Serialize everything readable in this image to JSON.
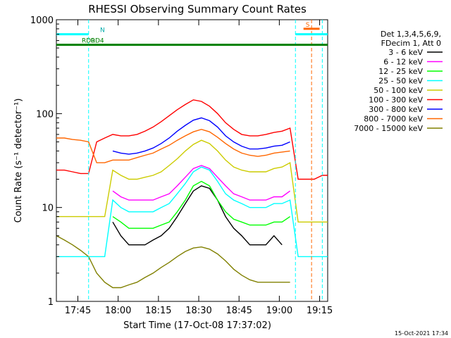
{
  "chart_data": {
    "type": "line",
    "title": "RHESSI Observing Summary Count Rates",
    "xlabel": "Start Time (17-Oct-08 17:37:02)",
    "ylabel": "Count Rate (s⁻¹ detector⁻¹)",
    "y_scale": "log",
    "ylim": [
      1,
      1000
    ],
    "xlim": [
      "17:37",
      "19:18"
    ],
    "x_ticks": [
      "17:45",
      "18:00",
      "18:15",
      "18:30",
      "18:45",
      "19:00",
      "19:15"
    ],
    "y_ticks": [
      "1",
      "10",
      "100",
      "1000"
    ],
    "legend_position": "top-right",
    "legend_header": [
      "Det 1,3,4,5,6,9,",
      "FDecim 1, Att 0"
    ],
    "timestamp": "15-Oct-2021 17:34",
    "x": [
      "17:37",
      "17:40",
      "17:43",
      "17:46",
      "17:49",
      "17:52",
      "17:55",
      "17:58",
      "18:01",
      "18:04",
      "18:07",
      "18:10",
      "18:13",
      "18:16",
      "18:19",
      "18:22",
      "18:25",
      "18:28",
      "18:31",
      "18:34",
      "18:37",
      "18:40",
      "18:43",
      "18:46",
      "18:49",
      "18:52",
      "18:55",
      "18:58",
      "19:01",
      "19:04",
      "19:07",
      "19:10",
      "19:13",
      "19:16",
      "19:18"
    ],
    "series": [
      {
        "name": "3 - 6 keV",
        "color": "#000000",
        "values": [
          null,
          null,
          null,
          null,
          null,
          null,
          null,
          7,
          5,
          4,
          4,
          4,
          4.5,
          5,
          6,
          8,
          11,
          15,
          17,
          16,
          12,
          8,
          6,
          5,
          4,
          4,
          4,
          5,
          4,
          null,
          null,
          null,
          null,
          null,
          null
        ]
      },
      {
        "name": "6 - 12 keV",
        "color": "#ff00ff",
        "values": [
          null,
          null,
          null,
          null,
          null,
          null,
          null,
          15,
          13,
          12,
          12,
          12,
          12,
          13,
          14,
          17,
          21,
          26,
          28,
          26,
          21,
          17,
          14,
          13,
          12,
          12,
          12,
          13,
          13,
          15,
          null,
          null,
          null,
          null,
          null
        ]
      },
      {
        "name": "12 - 25 keV",
        "color": "#00ff00",
        "values": [
          null,
          null,
          null,
          null,
          null,
          null,
          null,
          8,
          7,
          6,
          6,
          6,
          6,
          6.5,
          7,
          9,
          12,
          17,
          19,
          17,
          12,
          9,
          7.5,
          7,
          6.5,
          6.5,
          6.5,
          7,
          7,
          8,
          null,
          null,
          null,
          null,
          null
        ]
      },
      {
        "name": "25 - 50 keV",
        "color": "#00ffff",
        "values": [
          3,
          3,
          3,
          3,
          3,
          3,
          3,
          12,
          10,
          9,
          9,
          9,
          9,
          10,
          11,
          14,
          18,
          24,
          27,
          25,
          19,
          14,
          12,
          11,
          10,
          10,
          10,
          11,
          11,
          12,
          3,
          3,
          3,
          3,
          3
        ]
      },
      {
        "name": "50 - 100 keV",
        "color": "#cccc00",
        "values": [
          8,
          8,
          8,
          8,
          8,
          8,
          8,
          25,
          22,
          20,
          20,
          21,
          22,
          24,
          28,
          33,
          40,
          47,
          52,
          48,
          40,
          32,
          27,
          25,
          24,
          24,
          24,
          26,
          27,
          30,
          7,
          7,
          7,
          7,
          7
        ]
      },
      {
        "name": "100 - 300 keV",
        "color": "#ff0000",
        "values": [
          25,
          25,
          24,
          23,
          23,
          50,
          55,
          60,
          58,
          58,
          60,
          65,
          72,
          82,
          95,
          110,
          125,
          140,
          135,
          120,
          100,
          80,
          68,
          60,
          58,
          58,
          60,
          63,
          65,
          70,
          20,
          20,
          20,
          22,
          22
        ]
      },
      {
        "name": "300 - 800 keV",
        "color": "#0000ff",
        "values": [
          null,
          null,
          null,
          null,
          null,
          null,
          null,
          40,
          38,
          37,
          38,
          40,
          43,
          48,
          55,
          65,
          75,
          85,
          90,
          84,
          72,
          58,
          50,
          45,
          42,
          42,
          43,
          45,
          46,
          50,
          null,
          null,
          null,
          null,
          null
        ]
      },
      {
        "name": "800 - 7000 keV",
        "color": "#ff6600",
        "values": [
          55,
          55,
          53,
          52,
          50,
          30,
          30,
          32,
          32,
          32,
          34,
          36,
          38,
          42,
          46,
          52,
          58,
          64,
          68,
          64,
          56,
          48,
          42,
          38,
          36,
          35,
          36,
          38,
          39,
          40,
          null,
          null,
          null,
          null,
          null
        ]
      },
      {
        "name": "7000 - 15000 keV",
        "color": "#808000",
        "values": [
          5,
          4.5,
          4,
          3.5,
          3,
          2,
          1.6,
          1.4,
          1.4,
          1.5,
          1.6,
          1.8,
          2,
          2.3,
          2.6,
          3,
          3.4,
          3.7,
          3.8,
          3.6,
          3.2,
          2.7,
          2.2,
          1.9,
          1.7,
          1.6,
          1.6,
          1.6,
          1.6,
          1.6,
          null,
          null,
          null,
          null,
          null
        ]
      }
    ],
    "state_lines": [
      {
        "label": "N",
        "color": "#00ffff",
        "from": "17:37",
        "to": "17:49",
        "y": 700
      },
      {
        "label": "RD0",
        "color": "#008000",
        "from": "17:37",
        "to": "17:49",
        "y": 540
      },
      {
        "label": "RD4",
        "color": "#008000",
        "from": "17:49",
        "to": "19:18",
        "y": 540
      },
      {
        "label": "",
        "color": "#00ffff",
        "from": "19:06",
        "to": "19:18",
        "y": 700
      },
      {
        "label": "S",
        "color": "#ff6600",
        "from": "19:09",
        "to": "19:15",
        "y": 800
      }
    ],
    "vertical_markers": [
      {
        "color": "#00ffff",
        "time": "17:49"
      },
      {
        "color": "#00ffff",
        "time": "19:06"
      },
      {
        "color": "#ff6600",
        "time": "19:12"
      },
      {
        "color": "#00ffff",
        "time": "19:16"
      }
    ]
  }
}
